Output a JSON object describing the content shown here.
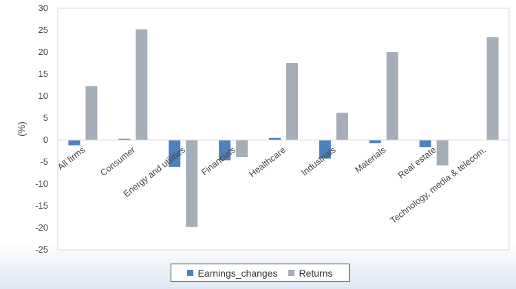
{
  "chart_data": {
    "type": "bar",
    "ylabel": "(%)",
    "ylim": [
      -25,
      30
    ],
    "yticks": [
      30,
      25,
      20,
      15,
      10,
      5,
      0,
      -5,
      -10,
      -15,
      -20,
      -25
    ],
    "grid": false,
    "legend_position": "bottom",
    "categories": [
      "All firms",
      "Consumer",
      "Energy and utilities",
      "Financials",
      "Healthcare",
      "Industrials",
      "Materials",
      "Real estate",
      "Technology, media & telecom."
    ],
    "series": [
      {
        "name": "Earnings_changes",
        "color": "#4f81bd",
        "values": [
          -1.2,
          0.3,
          -6.1,
          -4.6,
          0.5,
          -4.2,
          -0.7,
          -1.6,
          0
        ]
      },
      {
        "name": "Returns",
        "color": "#a5adb8",
        "values": [
          12.3,
          25.2,
          -19.8,
          -3.9,
          17.5,
          6.2,
          20.0,
          -5.8,
          23.4
        ]
      }
    ]
  }
}
